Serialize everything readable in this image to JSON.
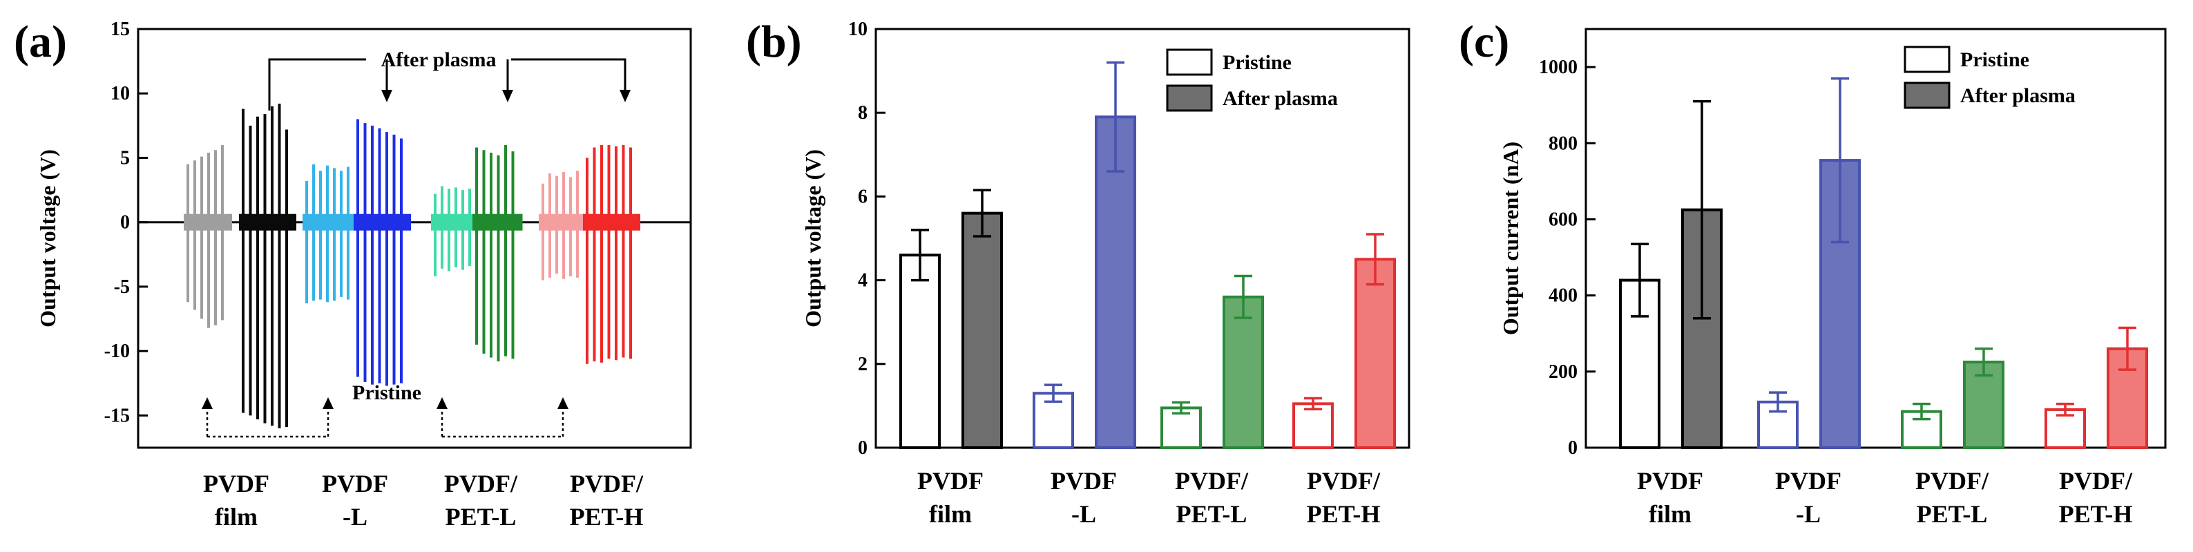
{
  "chart_data": [
    {
      "panel_label": "(a)",
      "type": "line",
      "ylabel": "Output voltage (V)",
      "ylim": [
        -17.5,
        15
      ],
      "yticks": [
        -15,
        -10,
        -5,
        0,
        5,
        10,
        15
      ],
      "categories": [
        [
          "PVDF",
          "film"
        ],
        [
          "PVDF",
          "-L"
        ],
        [
          "PVDF/",
          "PET-L"
        ],
        [
          "PVDF/",
          "PET-H"
        ]
      ],
      "annotations": {
        "top": "After plasma",
        "bottom": "Pristine"
      },
      "colors": {
        "pristine": [
          "#9e9e9e",
          "#36b4ea",
          "#3fdba6",
          "#f59ea0"
        ],
        "plasma": [
          "#0a0a0a",
          "#1f2fe8",
          "#1f8a2e",
          "#f02828"
        ]
      },
      "series": [
        {
          "group": "PVDF film",
          "state": "pristine",
          "peaks_pos": [
            4.5,
            4.8,
            5.1,
            5.4,
            5.6,
            6.0
          ],
          "peaks_neg": [
            -6.2,
            -6.8,
            -7.5,
            -8.2,
            -8.0,
            -7.6
          ]
        },
        {
          "group": "PVDF film",
          "state": "plasma",
          "peaks_pos": [
            8.8,
            7.5,
            8.2,
            8.4,
            9.0,
            9.2,
            7.2
          ],
          "peaks_neg": [
            -14.8,
            -15.0,
            -15.3,
            -15.6,
            -15.8,
            -16.0,
            -15.9
          ]
        },
        {
          "group": "PVDF -L",
          "state": "pristine",
          "peaks_pos": [
            3.2,
            4.5,
            4.0,
            4.4,
            4.2,
            4.0,
            4.3
          ],
          "peaks_neg": [
            -6.3,
            -6.1,
            -6.0,
            -6.2,
            -6.1,
            -5.8,
            -6.0
          ]
        },
        {
          "group": "PVDF -L",
          "state": "plasma",
          "peaks_pos": [
            8.0,
            7.7,
            7.5,
            7.3,
            7.0,
            6.8,
            6.5
          ],
          "peaks_neg": [
            -12.0,
            -12.4,
            -12.6,
            -12.5,
            -12.7,
            -12.6,
            -12.5
          ]
        },
        {
          "group": "PVDF/PET-L",
          "state": "pristine",
          "peaks_pos": [
            2.2,
            2.8,
            2.6,
            2.7,
            2.5,
            2.6
          ],
          "peaks_neg": [
            -4.2,
            -3.6,
            -3.8,
            -3.5,
            -3.7,
            -3.4
          ]
        },
        {
          "group": "PVDF/PET-L",
          "state": "plasma",
          "peaks_pos": [
            5.8,
            5.6,
            5.4,
            5.2,
            6.0,
            5.5
          ],
          "peaks_neg": [
            -9.5,
            -10.2,
            -10.5,
            -10.8,
            -10.4,
            -10.6
          ]
        },
        {
          "group": "PVDF/PET-H",
          "state": "pristine",
          "peaks_pos": [
            3.0,
            3.8,
            3.6,
            3.9,
            3.5,
            4.0
          ],
          "peaks_neg": [
            -4.5,
            -4.3,
            -4.0,
            -4.4,
            -4.2,
            -4.3
          ]
        },
        {
          "group": "PVDF/PET-H",
          "state": "plasma",
          "peaks_pos": [
            5.0,
            5.8,
            6.0,
            6.0,
            5.9,
            6.0,
            5.8
          ],
          "peaks_neg": [
            -11.0,
            -10.8,
            -10.9,
            -10.6,
            -10.7,
            -10.5,
            -10.6
          ]
        }
      ]
    },
    {
      "panel_label": "(b)",
      "type": "bar",
      "ylabel": "Output voltage (V)",
      "ylim": [
        0,
        10
      ],
      "yticks": [
        0,
        2,
        4,
        6,
        8,
        10
      ],
      "categories": [
        [
          "PVDF",
          "film"
        ],
        [
          "PVDF",
          "-L"
        ],
        [
          "PVDF/",
          "PET-L"
        ],
        [
          "PVDF/",
          "PET-H"
        ]
      ],
      "colors": [
        "#000000",
        "#4853b0",
        "#2a8a3a",
        "#e22f32"
      ],
      "plasma_fill": [
        "#6e6e6e",
        "#6a73bb",
        "#67ab6c",
        "#f07a7a"
      ],
      "series": [
        {
          "name": "Pristine",
          "values": [
            4.6,
            1.3,
            0.95,
            1.05
          ],
          "errors": [
            0.6,
            0.2,
            0.13,
            0.13
          ]
        },
        {
          "name": "After plasma",
          "values": [
            5.6,
            7.9,
            3.6,
            4.5
          ],
          "errors": [
            0.55,
            1.3,
            0.5,
            0.6
          ]
        }
      ]
    },
    {
      "panel_label": "(c)",
      "type": "bar",
      "ylabel": "Output current (nA)",
      "ylim": [
        0,
        1100
      ],
      "yticks": [
        0,
        200,
        400,
        600,
        800,
        1000
      ],
      "categories": [
        [
          "PVDF",
          "film"
        ],
        [
          "PVDF",
          "-L"
        ],
        [
          "PVDF/",
          "PET-L"
        ],
        [
          "PVDF/",
          "PET-H"
        ]
      ],
      "colors": [
        "#000000",
        "#4853b0",
        "#2a8a3a",
        "#e22f32"
      ],
      "plasma_fill": [
        "#6e6e6e",
        "#6a73bb",
        "#67ab6c",
        "#f07a7a"
      ],
      "series": [
        {
          "name": "Pristine",
          "values": [
            440,
            120,
            95,
            100
          ],
          "errors": [
            95,
            25,
            20,
            15
          ]
        },
        {
          "name": "After plasma",
          "values": [
            625,
            755,
            225,
            260
          ],
          "errors": [
            285,
            215,
            35,
            55
          ]
        }
      ]
    }
  ]
}
